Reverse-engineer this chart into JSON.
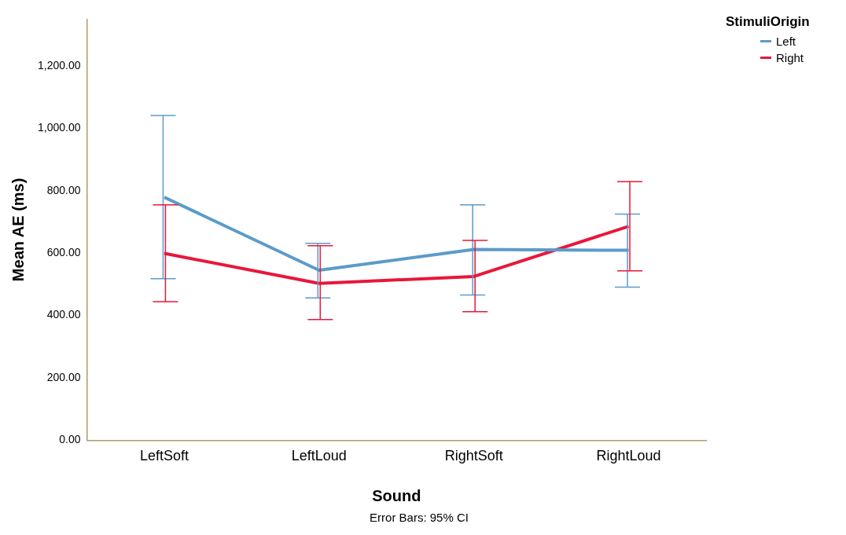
{
  "chart_data": {
    "type": "line",
    "xlabel": "Sound",
    "ylabel": "Mean AE (ms)",
    "legend_title": "StimuliOrigin",
    "legend": "top right",
    "grid": false,
    "marker": "none",
    "line_style": "solid",
    "categories": [
      "LeftSoft",
      "LeftLoud",
      "RightSoft",
      "RightLoud"
    ],
    "ylim": [
      0,
      1350
    ],
    "yticks": [
      {
        "value": 0,
        "label": "0.00"
      },
      {
        "value": 200,
        "label": "200.00"
      },
      {
        "value": 400,
        "label": "400.00"
      },
      {
        "value": 600,
        "label": "600.00"
      },
      {
        "value": 800,
        "label": "800.00"
      },
      {
        "value": 1000,
        "label": "1,000.00"
      },
      {
        "value": 1200,
        "label": "1,200.00"
      }
    ],
    "series": [
      {
        "name": "Left",
        "color": "#5b9bc9",
        "values": [
          779,
          545,
          612,
          609
        ],
        "errors": [
          [
            518,
            1041
          ],
          [
            456,
            631
          ],
          [
            466,
            755
          ],
          [
            491,
            725
          ]
        ]
      },
      {
        "name": "Right",
        "color": "#e8173a",
        "values": [
          599,
          503,
          525,
          686
        ],
        "errors": [
          [
            444,
            755
          ],
          [
            387,
            624
          ],
          [
            412,
            641
          ],
          [
            543,
            829
          ]
        ]
      }
    ],
    "annotations": [
      "Error Bars: 95% CI"
    ]
  }
}
